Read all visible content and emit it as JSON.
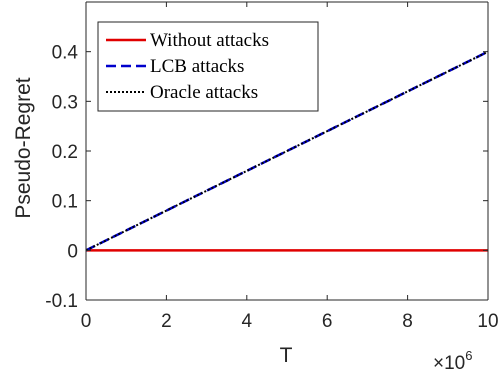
{
  "chart_data": {
    "type": "line",
    "xlabel": "T",
    "ylabel": "Pseudo-Regret",
    "x_multiplier": "×10",
    "x_multiplier_exp": "6",
    "xlim": [
      0,
      10
    ],
    "ylim": [
      -0.1,
      0.5
    ],
    "x_ticks": [
      0,
      2,
      4,
      6,
      8,
      10
    ],
    "x_tick_labels": [
      "0",
      "2",
      "4",
      "6",
      "8",
      "10"
    ],
    "y_ticks": [
      -0.1,
      0,
      0.1,
      0.2,
      0.3,
      0.4
    ],
    "y_tick_labels": [
      "-0.1",
      "0",
      "0.1",
      "0.2",
      "0.3",
      "0.4"
    ],
    "grid": false,
    "legend_position": "top-left",
    "series": [
      {
        "name": "Without attacks",
        "color": "#e00000",
        "style": "solid",
        "x": [
          0,
          10
        ],
        "y": [
          0,
          0
        ]
      },
      {
        "name": "LCB attacks",
        "color": "#0000cc",
        "style": "dashed",
        "x": [
          0,
          10
        ],
        "y": [
          0,
          0.4
        ]
      },
      {
        "name": "Oracle attacks",
        "color": "#000000",
        "style": "dotted",
        "x": [
          0,
          10
        ],
        "y": [
          0,
          0.4
        ]
      }
    ]
  }
}
